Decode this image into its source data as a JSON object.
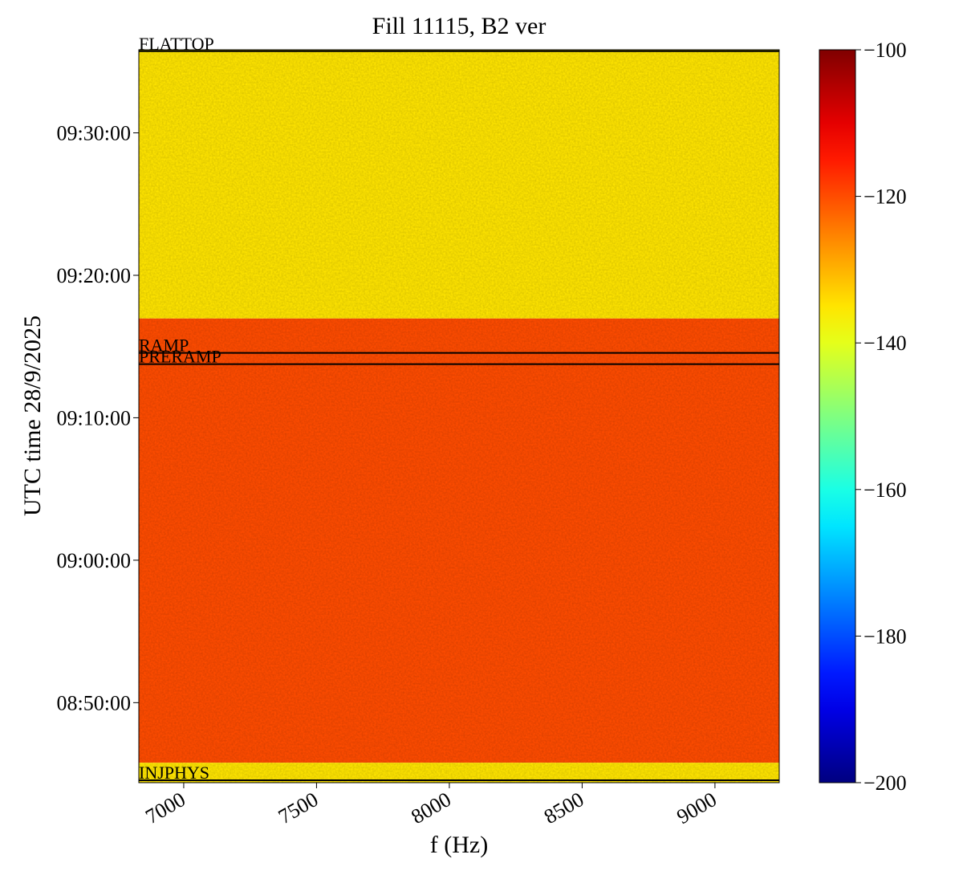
{
  "chart_data": {
    "type": "spectrogram",
    "title": "Fill 11115, B2 ver",
    "x_label": "f (Hz)",
    "y_label": "UTC time 28/9/2025",
    "xlim": [
      6831,
      9242
    ],
    "xticks": [
      7000,
      7500,
      8000,
      8500,
      9000
    ],
    "ylim": [
      31463,
      34550
    ],
    "yticks": [
      {
        "value": 31800,
        "label": "08:50:00"
      },
      {
        "value": 32400,
        "label": "09:00:00"
      },
      {
        "value": 33000,
        "label": "09:10:00"
      },
      {
        "value": 33600,
        "label": "09:20:00"
      },
      {
        "value": 34200,
        "label": "09:30:00"
      }
    ],
    "regions": [
      {
        "from": 33418,
        "to": 34550,
        "level": -135
      },
      {
        "from": 31547,
        "to": 33418,
        "level": -120
      },
      {
        "from": 31463,
        "to": 31547,
        "level": -135
      }
    ],
    "markers": [
      {
        "label": "FLATTOP",
        "time": 34544
      },
      {
        "label": "RAMP",
        "time": 33273
      },
      {
        "label": "PRERAMP",
        "time": 33226
      },
      {
        "label": "INJPHYS",
        "time": 31473
      }
    ],
    "colorbar": {
      "colormap": "jet",
      "lim": [
        -200,
        -100
      ],
      "ticks": [
        {
          "value": -200,
          "label": "−200"
        },
        {
          "value": -180,
          "label": "−180"
        },
        {
          "value": -160,
          "label": "−160"
        },
        {
          "value": -140,
          "label": "−140"
        },
        {
          "value": -120,
          "label": "−120"
        },
        {
          "value": -100,
          "label": "−100"
        }
      ]
    }
  }
}
